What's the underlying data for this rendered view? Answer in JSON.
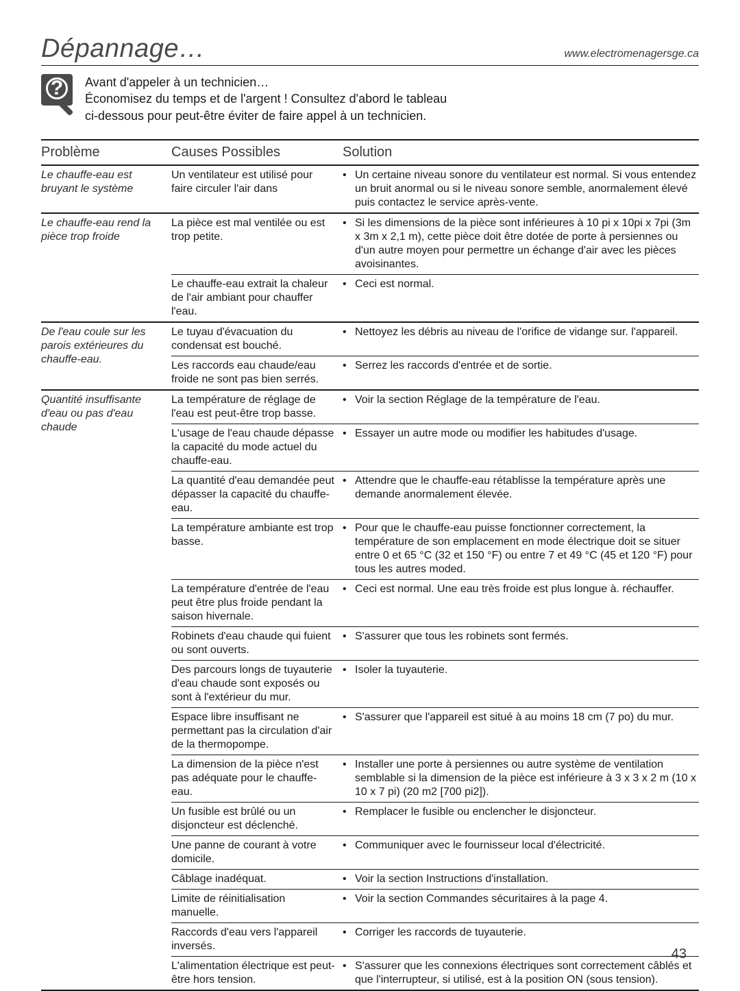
{
  "pageTitle": "Dépannage…",
  "siteUrl": "www.electromenagersge.ca",
  "intro": {
    "line1": "Avant d'appeler à un technicien…",
    "line2": "Économisez du temps et de l'argent ! Consultez d'abord le tableau",
    "line3": "ci-dessous pour peut-être éviter de faire appel à un technicien."
  },
  "columns": {
    "problem": "Problème",
    "cause": "Causes Possibles",
    "solution": "Solution"
  },
  "groups": [
    {
      "problem": "Le chauffe-eau est bruyant le système",
      "rows": [
        {
          "cause": "Un ventilateur est utilisé pour faire circuler l'air dans",
          "solution": "Un certaine niveau sonore du ventilateur est normal. Si vous entendez un bruit anormal ou si le niveau sonore semble, anormalement élevé puis contactez le service après-vente."
        }
      ]
    },
    {
      "problem": "Le chauffe-eau rend la pièce trop froide",
      "rows": [
        {
          "cause": "La pièce est mal ventilée ou est trop petite.",
          "solution": "Si les dimensions de la pièce sont inférieures à 10 pi x 10pi x 7pi (3m x 3m x 2,1 m), cette pièce doit être dotée de porte à persiennes ou d'un autre moyen pour permettre un échange d'air avec les pièces avoisinantes."
        },
        {
          "cause": "Le chauffe-eau extrait la chaleur de l'air ambiant pour chauffer l'eau.",
          "solution": "Ceci est normal."
        }
      ]
    },
    {
      "problem": "De l'eau coule sur les parois extérieures du chauffe-eau.",
      "rows": [
        {
          "cause": "Le tuyau d'évacuation du condensat est bouché.",
          "solution": "Nettoyez les débris au niveau de l'orifice de vidange sur. l'appareil."
        },
        {
          "cause": "Les raccords eau chaude/eau froide ne sont pas bien serrés.",
          "solution": "Serrez les raccords d'entrée et de sortie."
        }
      ]
    },
    {
      "problem": "Quantité insuffisante d'eau ou pas d'eau chaude",
      "rows": [
        {
          "cause": "La température de réglage de l'eau est peut-être trop basse.",
          "solution": "Voir la section Réglage de la température de l'eau."
        },
        {
          "cause": "L'usage de l'eau chaude dépasse la capacité du mode actuel du chauffe-eau.",
          "solution": "Essayer un autre mode ou modifier les habitudes d'usage."
        },
        {
          "cause": "La quantité d'eau demandée peut dépasser la capacité du chauffe-eau.",
          "solution": "Attendre que le chauffe-eau rétablisse la température après une demande anormalement élevée."
        },
        {
          "cause": "La température ambiante est trop basse.",
          "solution": "Pour que le chauffe-eau puisse fonctionner correctement, la température de son emplacement en mode électrique doit se situer entre 0 et 65 °C (32 et 150 °F) ou entre 7 et 49 °C (45 et 120 °F) pour tous les autres moded."
        },
        {
          "cause": "La température d'entrée de l'eau peut être plus froide pendant la saison hivernale.",
          "solution": "Ceci est normal. Une eau très froide est plus longue à. réchauffer."
        },
        {
          "cause": "Robinets d'eau chaude qui fuient ou sont ouverts.",
          "solution": "S'assurer que tous les robinets sont fermés."
        },
        {
          "cause": "Des parcours longs de tuyauterie d'eau chaude sont exposés ou sont à l'extérieur du mur.",
          "solution": "Isoler la tuyauterie."
        },
        {
          "cause": "Espace libre insuffisant ne permettant pas la circulation d'air de la thermopompe.",
          "solution": "S'assurer que l'appareil est situé à au moins 18 cm (7 po) du mur."
        },
        {
          "cause": "La dimension de la pièce n'est pas adéquate pour le chauffe-eau.",
          "solution": "Installer une porte à persiennes ou autre système de ventilation semblable si la dimension de la pièce est inférieure à 3 x 3 x 2 m (10 x 10 x 7 pi) (20 m2 [700 pi2])."
        },
        {
          "cause": "Un fusible est brûlé ou un disjoncteur est déclenché.",
          "solution": "Remplacer le fusible ou enclencher le disjoncteur."
        },
        {
          "cause": "Une panne de courant à votre domicile.",
          "solution": "Communiquer avec le fournisseur local d'électricité."
        },
        {
          "cause": "Câblage inadéquat.",
          "solution": "Voir la section Instructions d'installation."
        },
        {
          "cause": "Limite de réinitialisation manuelle.",
          "solution": "Voir la section Commandes sécuritaires à la page 4."
        },
        {
          "cause": "Raccords d'eau vers l'appareil inversés.",
          "solution": "Corriger les raccords de tuyauterie."
        },
        {
          "cause": "L'alimentation électrique est peut-être hors tension.",
          "solution": "S'assurer que les connexions électriques sont correctement câblés et que l'interrupteur, si utilisé, est à la position ON (sous tension)."
        }
      ]
    }
  ],
  "pageNumber": "43"
}
